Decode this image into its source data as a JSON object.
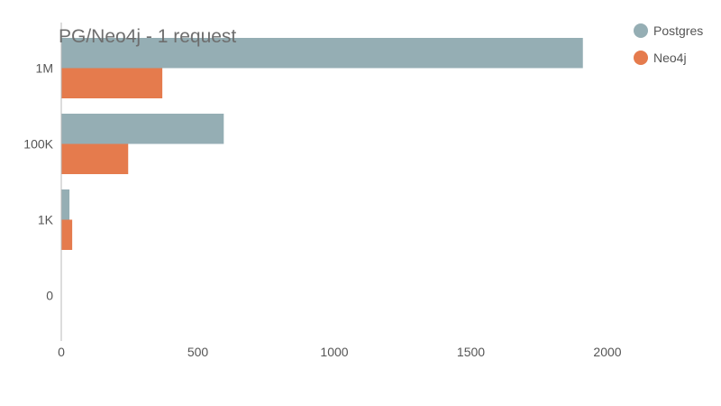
{
  "chart_data": {
    "type": "bar",
    "orientation": "horizontal",
    "title": "PG/Neo4j - 1 request",
    "categories": [
      "1M",
      "100K",
      "1K",
      "0"
    ],
    "series": [
      {
        "name": "Postgres",
        "color": "#95aeb4",
        "values": [
          1910,
          595,
          30,
          0
        ]
      },
      {
        "name": "Neo4j",
        "color": "#e57b4d",
        "values": [
          370,
          245,
          40,
          0
        ]
      }
    ],
    "x_ticks": [
      "0",
      "500",
      "1000",
      "1500",
      "2000"
    ],
    "xlim": [
      0,
      2330
    ],
    "grid": false,
    "legend_position": "top-right"
  }
}
